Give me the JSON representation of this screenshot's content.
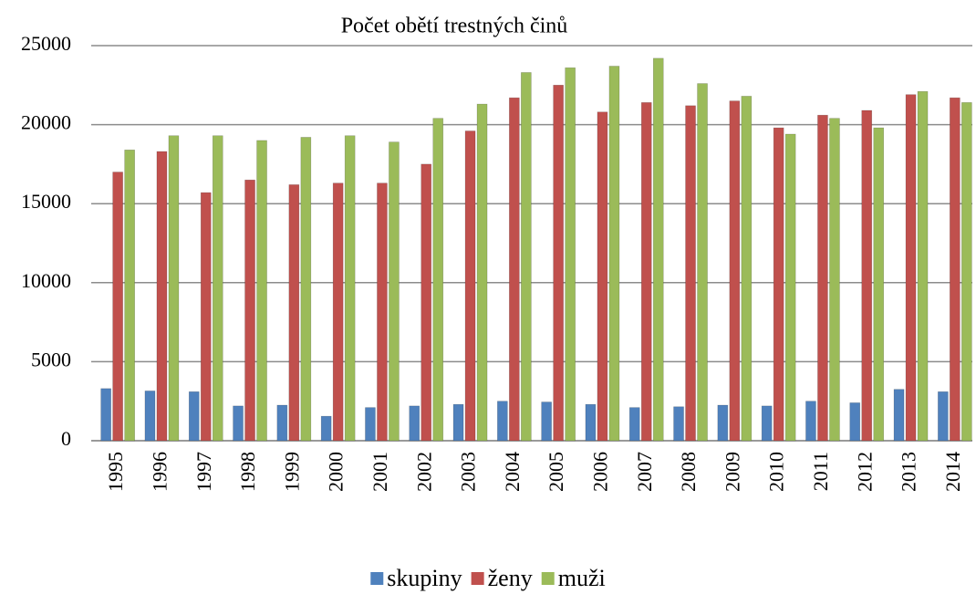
{
  "chart_data": {
    "type": "bar",
    "title": "Počet obětí trestných  činů",
    "categories": [
      "1995",
      "1996",
      "1997",
      "1998",
      "1999",
      "2000",
      "2001",
      "2002",
      "2003",
      "2004",
      "2005",
      "2006",
      "2007",
      "2008",
      "2009",
      "2010",
      "2011",
      "2012",
      "2013",
      "2014"
    ],
    "series": [
      {
        "name": "skupiny",
        "color": "#4f81bd",
        "values": [
          3300,
          3150,
          3100,
          2200,
          2250,
          1550,
          2100,
          2200,
          2300,
          2500,
          2450,
          2300,
          2100,
          2150,
          2250,
          2200,
          2500,
          2400,
          3250,
          3100
        ]
      },
      {
        "name": "ženy",
        "color": "#c0504d",
        "values": [
          17000,
          18300,
          15700,
          16500,
          16200,
          16300,
          16300,
          17500,
          19600,
          21700,
          22500,
          20800,
          21400,
          21200,
          21500,
          19800,
          20600,
          20900,
          21900,
          21700
        ]
      },
      {
        "name": "muži",
        "color": "#9bbb59",
        "values": [
          18400,
          19300,
          19300,
          19000,
          19200,
          19300,
          18900,
          20400,
          21300,
          23300,
          23600,
          23700,
          24200,
          22600,
          21800,
          19400,
          20400,
          19800,
          22100,
          21400
        ]
      }
    ],
    "ylim": [
      0,
      25000
    ],
    "yticks": [
      0,
      5000,
      10000,
      15000,
      20000,
      25000
    ],
    "grid": true,
    "legend": "bottom"
  }
}
